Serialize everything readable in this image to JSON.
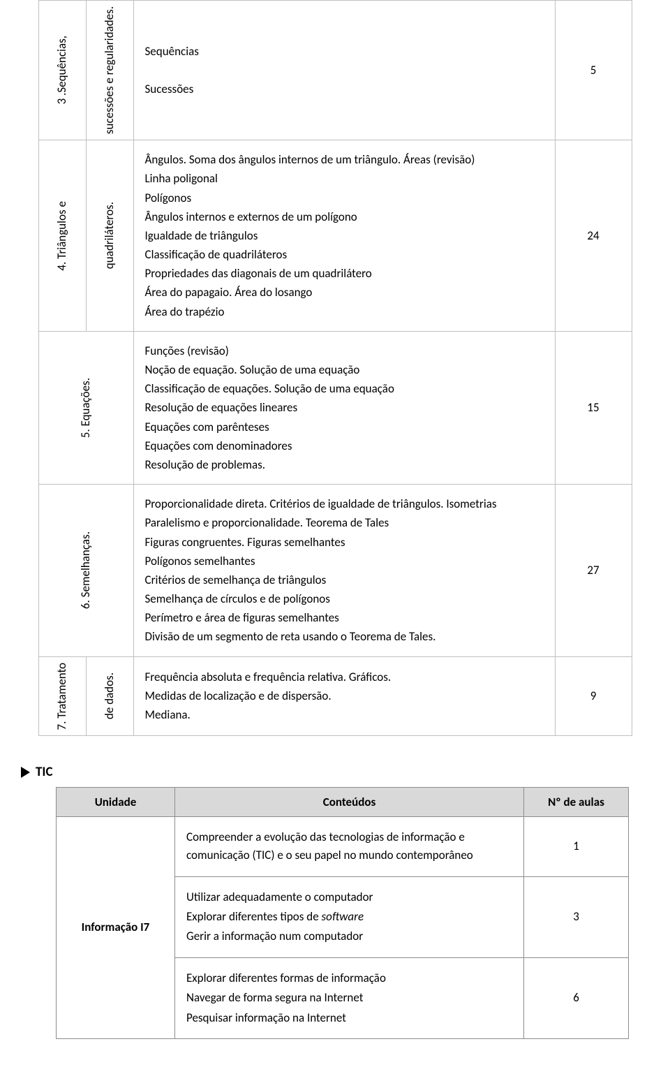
{
  "table1": {
    "rows": [
      {
        "label_a": "3 .Sequências,",
        "label_b": "sucessões e regularidades.",
        "content_html": "Sequências<br><br>Sucessões",
        "count": "5"
      },
      {
        "label_a": "4. Triângulos e",
        "label_b": "quadriláteros.",
        "content_html": "Ângulos. Soma dos ângulos internos de um triângulo. Áreas (revisão)<br>Linha poligonal<br>Polígonos<br>Ângulos internos e externos de um polígono<br>Igualdade de triângulos<br>Classificação de quadriláteros<br>Propriedades das diagonais de um quadrilátero<br>Área do papagaio. Área do losango<br>Área do trapézio",
        "count": "24"
      },
      {
        "label_a": "",
        "label_b": "5. Equações.",
        "content_html": "Funções (revisão)<br>Noção de equação. Solução de uma equação<br>Classificação de equações. Solução de uma equação<br>Resolução de equações lineares<br>Equações com parênteses<br>Equações com denominadores<br>Resolução de problemas.",
        "count": "15"
      },
      {
        "label_a": "",
        "label_b": "6. Semelhanças.",
        "content_html": "Proporcionalidade direta. Critérios de igualdade de triângulos. Isometrias<br>Paralelismo e proporcionalidade. Teorema de Tales<br>Figuras congruentes. Figuras semelhantes<br>Polígonos semelhantes<br>Critérios de semelhança de triângulos<br>Semelhança de círculos e de polígonos<br>Perímetro e área de figuras semelhantes<br>Divisão de um segmento de reta usando o Teorema de Tales.",
        "count": "27"
      },
      {
        "label_a": "7. Tratamento",
        "label_b": "de dados.",
        "content_html": "Frequência absoluta e frequência relativa. Gráficos.<br>Medidas de localização e de dispersão.<br>Mediana.",
        "count": "9"
      }
    ]
  },
  "section2": {
    "title": "TIC",
    "headers": {
      "unit": "Unidade",
      "content": "Conteúdos",
      "count": "Nº de aulas"
    },
    "unit_label": "Informação I7",
    "rows": [
      {
        "content_html": "Compreender a evolução das tecnologias de informação e comunicação (TIC) e o seu papel no mundo contemporâneo",
        "count": "1"
      },
      {
        "content_html": "Utilizar adequadamente o computador<br>Explorar diferentes tipos de <i>software</i><br>Gerir a informação num computador",
        "count": "3"
      },
      {
        "content_html": "Explorar diferentes formas de informação<br>Navegar de forma segura na Internet<br>Pesquisar informação na Internet",
        "count": "6"
      }
    ]
  }
}
